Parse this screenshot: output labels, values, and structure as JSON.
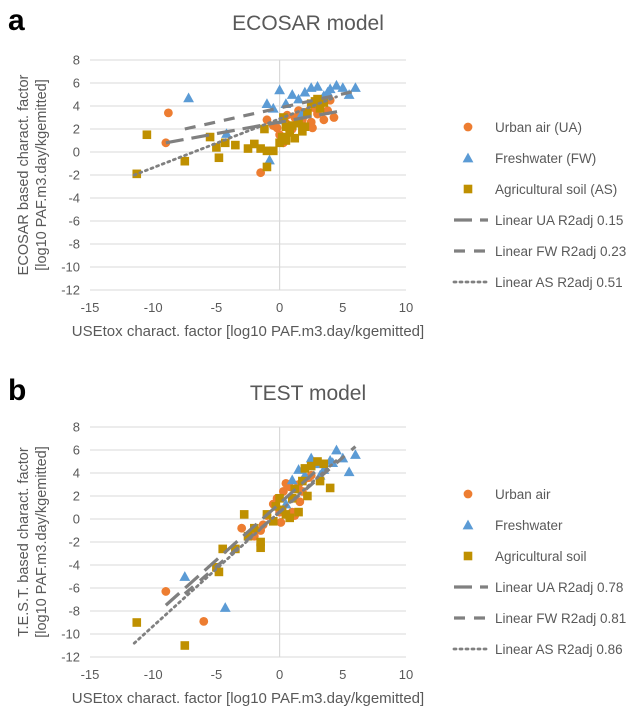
{
  "colors": {
    "urban": "#ED7D31",
    "fresh": "#5B9BD5",
    "agri": "#BF9000",
    "trend": "#808080",
    "grid": "#d9d9d9",
    "axis_text": "#595959"
  },
  "chart_data": [
    {
      "type": "scatter",
      "panel_label": "a",
      "title": "ECOSAR model",
      "xlabel": "USEtox charact. factor [log10 PAF.m3.day/kgemitted]",
      "ylabel_lines": [
        "ECOSAR based charact. factor",
        "[log10 PAF.m3.day/kgemitted]"
      ],
      "xlim": [
        -15,
        10
      ],
      "ylim": [
        -12,
        8
      ],
      "xticks": [
        "-15",
        "-10",
        "-5",
        "0",
        "5",
        "10"
      ],
      "yticks": [
        "8",
        "6",
        "4",
        "2",
        "0",
        "-2",
        "-4",
        "-6",
        "-8",
        "-10",
        "-12"
      ],
      "grid": "horizontal",
      "legend": "right",
      "series": [
        {
          "name": "Urban air (UA)",
          "marker": "circle",
          "points": [
            [
              -8.8,
              3.4
            ],
            [
              -9,
              0.8
            ],
            [
              -1.5,
              -1.8
            ],
            [
              -1,
              2.8
            ],
            [
              -0.5,
              2.3
            ],
            [
              0,
              1.5
            ],
            [
              0.3,
              0.8
            ],
            [
              0.5,
              2.5
            ],
            [
              0.8,
              1.8
            ],
            [
              1,
              2
            ],
            [
              1.2,
              3
            ],
            [
              1.5,
              3.6
            ],
            [
              1.8,
              2.8
            ],
            [
              2,
              3.2
            ],
            [
              2.2,
              3.5
            ],
            [
              2.5,
              2.6
            ],
            [
              2.8,
              3.8
            ],
            [
              3,
              3.3
            ],
            [
              3.3,
              4.2
            ],
            [
              3.5,
              2.8
            ],
            [
              3.8,
              3.6
            ],
            [
              4,
              4.5
            ],
            [
              4.3,
              3
            ],
            [
              -0.2,
              2.1
            ],
            [
              0.6,
              3.2
            ],
            [
              1.7,
              2.5
            ],
            [
              2.6,
              2.1
            ]
          ]
        },
        {
          "name": "Freshwater (FW)",
          "marker": "triangle",
          "points": [
            [
              -7.2,
              4.7
            ],
            [
              -4.2,
              1.6
            ],
            [
              -1,
              4.2
            ],
            [
              -0.5,
              3.8
            ],
            [
              0,
              5.4
            ],
            [
              0.5,
              4.2
            ],
            [
              1,
              5
            ],
            [
              1.5,
              4.6
            ],
            [
              2,
              5.2
            ],
            [
              2.5,
              5.6
            ],
            [
              3,
              5.7
            ],
            [
              3.5,
              4.9
            ],
            [
              4,
              5.5
            ],
            [
              4.5,
              5.8
            ],
            [
              5,
              5.6
            ],
            [
              5.5,
              5
            ],
            [
              6,
              5.6
            ],
            [
              -0.8,
              -0.7
            ],
            [
              0.2,
              2.8
            ],
            [
              1.8,
              3.4
            ],
            [
              2.8,
              4.4
            ],
            [
              3.8,
              5.2
            ]
          ]
        },
        {
          "name": "Agricultural soil (AS)",
          "marker": "square",
          "points": [
            [
              -11.3,
              -1.9
            ],
            [
              -10.5,
              1.5
            ],
            [
              -7.5,
              -0.8
            ],
            [
              -5.5,
              1.3
            ],
            [
              -5,
              0.4
            ],
            [
              -4.8,
              -0.5
            ],
            [
              -4.3,
              0.8
            ],
            [
              -3.5,
              0.6
            ],
            [
              -2.5,
              0.3
            ],
            [
              -2,
              0.7
            ],
            [
              -1.5,
              0.3
            ],
            [
              -1,
              -1.3
            ],
            [
              -1,
              0.1
            ],
            [
              -0.5,
              0.1
            ],
            [
              0,
              0.8
            ],
            [
              0.2,
              1.3
            ],
            [
              0.5,
              1
            ],
            [
              0.5,
              2.2
            ],
            [
              0.8,
              1.7
            ],
            [
              1,
              2.3
            ],
            [
              1.2,
              1.2
            ],
            [
              1.5,
              2.5
            ],
            [
              1.8,
              1.8
            ],
            [
              2,
              2.2
            ],
            [
              2.2,
              3.4
            ],
            [
              2.5,
              4.2
            ],
            [
              2.8,
              4.4
            ],
            [
              3,
              4.6
            ],
            [
              3.2,
              3.8
            ],
            [
              3.5,
              4.3
            ],
            [
              -1.2,
              2
            ],
            [
              0.3,
              3
            ]
          ]
        }
      ],
      "trendlines": [
        {
          "name": "Linear UA R2adj 0.15",
          "style": "longdash",
          "x": [
            -9,
            5
          ],
          "y": [
            0.8,
            3.6
          ]
        },
        {
          "name": "Linear FW R2adj 0.23",
          "style": "dash",
          "x": [
            -7.5,
            6
          ],
          "y": [
            2,
            5.3
          ]
        },
        {
          "name": "Linear AS R2adj 0.51",
          "style": "dot",
          "x": [
            -11.5,
            4.5
          ],
          "y": [
            -2,
            4.8
          ]
        }
      ]
    },
    {
      "type": "scatter",
      "panel_label": "b",
      "title": "TEST model",
      "xlabel": "USEtox charact. factor [log10 PAF.m3.day/kgemitted]",
      "ylabel_lines": [
        "T.E.S.T. based charact. factor",
        "[log10 PAF.m3.day/kgemitted]"
      ],
      "xlim": [
        -15,
        10
      ],
      "ylim": [
        -12,
        8
      ],
      "xticks": [
        "-15",
        "-10",
        "-5",
        "0",
        "5",
        "10"
      ],
      "yticks": [
        "8",
        "6",
        "4",
        "2",
        "0",
        "-2",
        "-4",
        "-6",
        "-8",
        "-10",
        "-12"
      ],
      "grid": "horizontal",
      "legend": "right",
      "series": [
        {
          "name": "Urban air",
          "marker": "circle",
          "points": [
            [
              -9,
              -6.3
            ],
            [
              -6,
              -8.9
            ],
            [
              -3,
              -0.8
            ],
            [
              -2,
              -1.5
            ],
            [
              -1.5,
              -1
            ],
            [
              -1,
              0.3
            ],
            [
              -0.5,
              1.3
            ],
            [
              -0.2,
              1.8
            ],
            [
              0,
              0.6
            ],
            [
              0.3,
              2.4
            ],
            [
              0.5,
              3.1
            ],
            [
              0.8,
              2.8
            ],
            [
              1,
              0.6
            ],
            [
              1.2,
              0.3
            ],
            [
              1.5,
              3
            ],
            [
              1.8,
              2.4
            ],
            [
              2,
              3.5
            ],
            [
              2.3,
              3.6
            ],
            [
              2.5,
              3.8
            ],
            [
              -1.3,
              -0.5
            ],
            [
              0.1,
              -0.3
            ],
            [
              1.6,
              1.5
            ]
          ]
        },
        {
          "name": "Freshwater",
          "marker": "triangle",
          "points": [
            [
              -7.5,
              -5
            ],
            [
              -4.3,
              -7.7
            ],
            [
              0.5,
              1.3
            ],
            [
              1,
              3.4
            ],
            [
              1.5,
              4.3
            ],
            [
              2,
              3.8
            ],
            [
              2.5,
              5.3
            ],
            [
              3,
              4.8
            ],
            [
              3.5,
              4.3
            ],
            [
              4,
              5.1
            ],
            [
              4.5,
              6
            ],
            [
              5,
              5.3
            ],
            [
              5.5,
              4.1
            ],
            [
              6,
              5.6
            ],
            [
              3.2,
              3.8
            ],
            [
              4.2,
              4.9
            ]
          ]
        },
        {
          "name": "Agricultural soil",
          "marker": "square",
          "points": [
            [
              -11.3,
              -9
            ],
            [
              -7.5,
              -11
            ],
            [
              -5,
              -4.2
            ],
            [
              -4.8,
              -4.6
            ],
            [
              -4.5,
              -2.6
            ],
            [
              -3.5,
              -2.6
            ],
            [
              -2.8,
              0.4
            ],
            [
              -2.5,
              -1.5
            ],
            [
              -2,
              -0.8
            ],
            [
              -1.5,
              -2
            ],
            [
              -1.5,
              -2.5
            ],
            [
              -1,
              0.4
            ],
            [
              -0.5,
              -0.2
            ],
            [
              0,
              1.8
            ],
            [
              0.2,
              0.8
            ],
            [
              0.5,
              0.4
            ],
            [
              0.8,
              0.1
            ],
            [
              1,
              1.8
            ],
            [
              1.2,
              2.6
            ],
            [
              1.5,
              0.6
            ],
            [
              1.8,
              3.3
            ],
            [
              2,
              4.4
            ],
            [
              2.5,
              4.6
            ],
            [
              3,
              5
            ],
            [
              3.2,
              3.3
            ],
            [
              3.5,
              4.8
            ],
            [
              4,
              2.7
            ],
            [
              -0.3,
              1.1
            ],
            [
              2.2,
              2
            ]
          ]
        }
      ],
      "trendlines": [
        {
          "name": "Linear UA R2adj 0.78",
          "style": "longdash",
          "x": [
            -9,
            3
          ],
          "y": [
            -7.5,
            4.3
          ]
        },
        {
          "name": "Linear FW R2adj 0.81",
          "style": "dash",
          "x": [
            -7.5,
            6
          ],
          "y": [
            -6.5,
            6.3
          ]
        },
        {
          "name": "Linear AS R2adj 0.86",
          "style": "dot",
          "x": [
            -11.5,
            4.5
          ],
          "y": [
            -10.8,
            5.1
          ]
        }
      ]
    }
  ]
}
